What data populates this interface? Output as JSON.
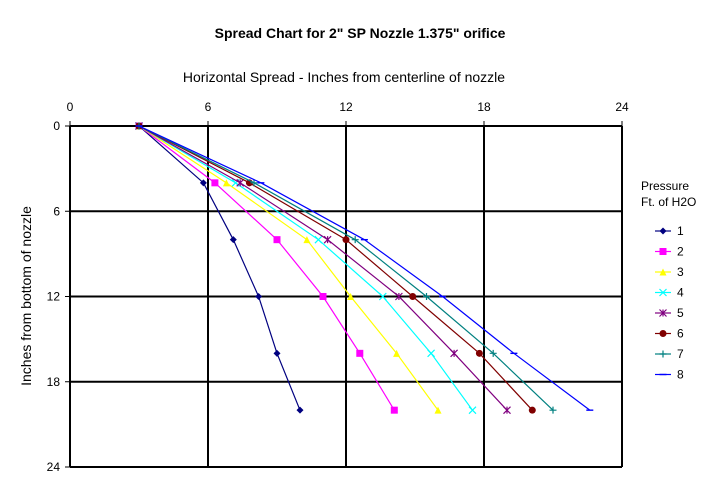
{
  "chart_data": {
    "type": "line",
    "title": "Spread Chart for 2\" SP Nozzle 1.375\" orifice",
    "xlabel": "Horizontal Spread - Inches from centerline of nozzle",
    "ylabel": "Inches from bottom of nozzle",
    "x_axis_position": "top",
    "y_axis_inverted": true,
    "xlim": [
      0,
      24
    ],
    "ylim": [
      0,
      24
    ],
    "x_ticks": [
      "0",
      "6",
      "12",
      "18",
      "24"
    ],
    "y_ticks": [
      "0",
      "6",
      "12",
      "18",
      "24"
    ],
    "grid": true,
    "legend_title": [
      "Pressure",
      "Ft. of H2O"
    ],
    "legend_position": "right",
    "series": [
      {
        "name": "1",
        "color": "#000080",
        "marker": "diamond",
        "points": [
          [
            3.0,
            0
          ],
          [
            5.8,
            4
          ],
          [
            7.1,
            8
          ],
          [
            8.2,
            12
          ],
          [
            9.0,
            16
          ],
          [
            10.0,
            20
          ]
        ]
      },
      {
        "name": "2",
        "color": "#ff00ff",
        "marker": "square",
        "points": [
          [
            3.0,
            0
          ],
          [
            6.3,
            4
          ],
          [
            9.0,
            8
          ],
          [
            11.0,
            12
          ],
          [
            12.6,
            16
          ],
          [
            14.1,
            20
          ]
        ]
      },
      {
        "name": "3",
        "color": "#ffff00",
        "marker": "triangle",
        "points": [
          [
            3.0,
            0
          ],
          [
            6.8,
            4
          ],
          [
            10.3,
            8
          ],
          [
            12.2,
            12
          ],
          [
            14.2,
            16
          ],
          [
            16.0,
            20
          ]
        ]
      },
      {
        "name": "4",
        "color": "#00ffff",
        "marker": "x",
        "points": [
          [
            3.0,
            0
          ],
          [
            7.2,
            4
          ],
          [
            10.8,
            8
          ],
          [
            13.6,
            12
          ],
          [
            15.7,
            16
          ],
          [
            17.5,
            20
          ]
        ]
      },
      {
        "name": "5",
        "color": "#800080",
        "marker": "star",
        "points": [
          [
            3.0,
            0
          ],
          [
            7.4,
            4
          ],
          [
            11.2,
            8
          ],
          [
            14.3,
            12
          ],
          [
            16.7,
            16
          ],
          [
            19.0,
            20
          ]
        ]
      },
      {
        "name": "6",
        "color": "#800000",
        "marker": "circle",
        "points": [
          [
            3.0,
            0
          ],
          [
            7.8,
            4
          ],
          [
            12.0,
            8
          ],
          [
            14.9,
            12
          ],
          [
            17.8,
            16
          ],
          [
            20.1,
            20
          ]
        ]
      },
      {
        "name": "7",
        "color": "#008080",
        "marker": "plus",
        "points": [
          [
            3.0,
            0
          ],
          [
            8.0,
            4
          ],
          [
            12.4,
            8
          ],
          [
            15.5,
            12
          ],
          [
            18.4,
            16
          ],
          [
            21.0,
            20
          ]
        ]
      },
      {
        "name": "8",
        "color": "#0000ff",
        "marker": "dash",
        "points": [
          [
            3.0,
            0
          ],
          [
            8.3,
            4
          ],
          [
            12.8,
            8
          ],
          [
            16.2,
            12
          ],
          [
            19.3,
            16
          ],
          [
            22.6,
            20
          ]
        ]
      }
    ]
  }
}
